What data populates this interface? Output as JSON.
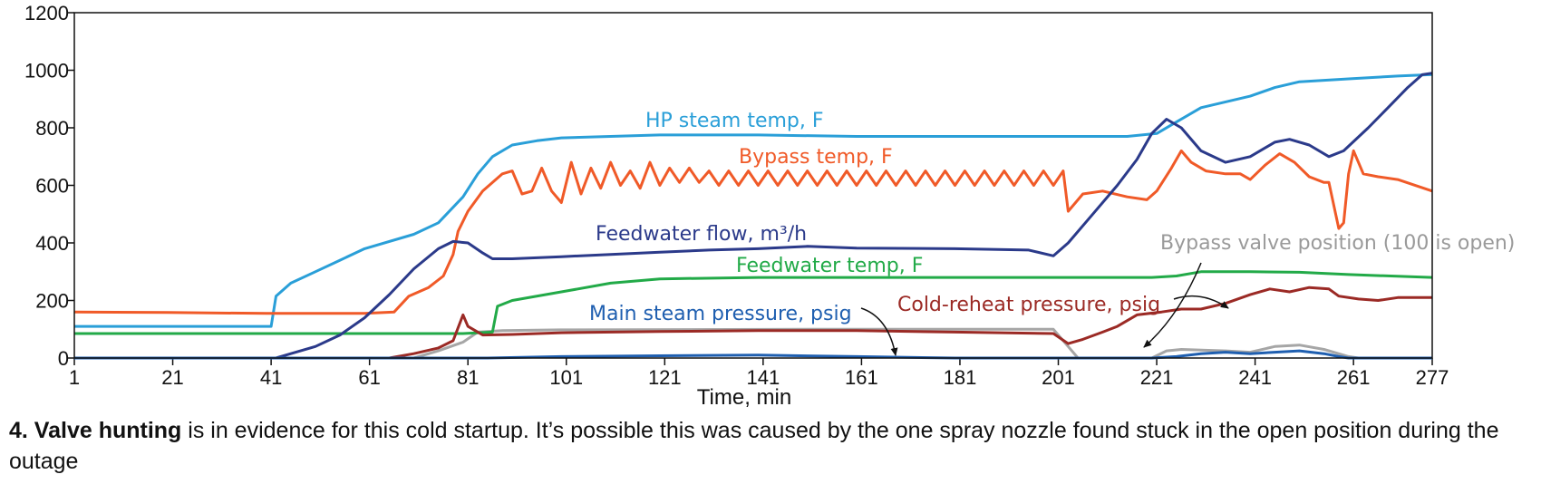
{
  "chart_data": {
    "type": "line",
    "xlabel": "Time, min",
    "ylabel": "",
    "xlim": [
      1,
      277
    ],
    "ylim": [
      0,
      1200
    ],
    "x_ticks": [
      1,
      21,
      41,
      61,
      81,
      101,
      121,
      141,
      161,
      181,
      201,
      221,
      241,
      261,
      277
    ],
    "y_ticks": [
      0,
      200,
      400,
      600,
      800,
      1000,
      1200
    ],
    "grid": false,
    "legend": "none",
    "series": [
      {
        "name": "HP steam temp, F",
        "color": "#2a9fd8",
        "points": [
          [
            1,
            110
          ],
          [
            20,
            110
          ],
          [
            41,
            110
          ],
          [
            42,
            215
          ],
          [
            45,
            260
          ],
          [
            50,
            300
          ],
          [
            55,
            340
          ],
          [
            60,
            380
          ],
          [
            70,
            430
          ],
          [
            75,
            470
          ],
          [
            80,
            560
          ],
          [
            83,
            640
          ],
          [
            86,
            700
          ],
          [
            90,
            740
          ],
          [
            95,
            755
          ],
          [
            100,
            765
          ],
          [
            110,
            770
          ],
          [
            120,
            775
          ],
          [
            140,
            775
          ],
          [
            160,
            770
          ],
          [
            180,
            770
          ],
          [
            200,
            770
          ],
          [
            215,
            770
          ],
          [
            221,
            780
          ],
          [
            225,
            820
          ],
          [
            230,
            870
          ],
          [
            240,
            910
          ],
          [
            245,
            940
          ],
          [
            250,
            960
          ],
          [
            260,
            970
          ],
          [
            270,
            980
          ],
          [
            277,
            985
          ]
        ]
      },
      {
        "name": "Bypass temp, F",
        "color": "#f05a28",
        "points": [
          [
            1,
            160
          ],
          [
            20,
            158
          ],
          [
            40,
            155
          ],
          [
            60,
            155
          ],
          [
            66,
            160
          ],
          [
            69,
            215
          ],
          [
            73,
            245
          ],
          [
            76,
            285
          ],
          [
            78,
            360
          ],
          [
            79,
            440
          ],
          [
            81,
            510
          ],
          [
            84,
            580
          ],
          [
            88,
            640
          ],
          [
            90,
            650
          ],
          [
            92,
            570
          ],
          [
            94,
            580
          ],
          [
            96,
            660
          ],
          [
            98,
            580
          ],
          [
            100,
            540
          ],
          [
            102,
            680
          ],
          [
            104,
            570
          ],
          [
            106,
            660
          ],
          [
            108,
            590
          ],
          [
            110,
            680
          ],
          [
            112,
            600
          ],
          [
            114,
            650
          ],
          [
            116,
            590
          ],
          [
            118,
            680
          ],
          [
            120,
            600
          ],
          [
            122,
            660
          ],
          [
            124,
            610
          ],
          [
            126,
            660
          ],
          [
            128,
            610
          ],
          [
            130,
            650
          ],
          [
            132,
            600
          ],
          [
            134,
            650
          ],
          [
            136,
            600
          ],
          [
            138,
            650
          ],
          [
            140,
            600
          ],
          [
            142,
            650
          ],
          [
            144,
            600
          ],
          [
            146,
            650
          ],
          [
            148,
            600
          ],
          [
            150,
            650
          ],
          [
            152,
            600
          ],
          [
            154,
            650
          ],
          [
            156,
            600
          ],
          [
            158,
            650
          ],
          [
            160,
            600
          ],
          [
            162,
            650
          ],
          [
            164,
            600
          ],
          [
            166,
            650
          ],
          [
            168,
            600
          ],
          [
            170,
            650
          ],
          [
            172,
            600
          ],
          [
            174,
            650
          ],
          [
            176,
            600
          ],
          [
            178,
            650
          ],
          [
            180,
            600
          ],
          [
            182,
            650
          ],
          [
            184,
            600
          ],
          [
            186,
            650
          ],
          [
            188,
            600
          ],
          [
            190,
            650
          ],
          [
            192,
            600
          ],
          [
            194,
            650
          ],
          [
            196,
            600
          ],
          [
            198,
            650
          ],
          [
            200,
            600
          ],
          [
            202,
            650
          ],
          [
            203,
            510
          ],
          [
            206,
            570
          ],
          [
            210,
            580
          ],
          [
            215,
            560
          ],
          [
            219,
            550
          ],
          [
            221,
            580
          ],
          [
            224,
            660
          ],
          [
            226,
            720
          ],
          [
            228,
            680
          ],
          [
            231,
            650
          ],
          [
            235,
            640
          ],
          [
            238,
            640
          ],
          [
            240,
            620
          ],
          [
            243,
            670
          ],
          [
            246,
            710
          ],
          [
            249,
            680
          ],
          [
            252,
            630
          ],
          [
            255,
            610
          ],
          [
            256,
            610
          ],
          [
            258,
            450
          ],
          [
            259,
            470
          ],
          [
            260,
            640
          ],
          [
            261,
            720
          ],
          [
            263,
            640
          ],
          [
            266,
            630
          ],
          [
            270,
            620
          ],
          [
            277,
            580
          ]
        ]
      },
      {
        "name": "Feedwater flow, m³/h",
        "color": "#2b3a8a",
        "points": [
          [
            1,
            0
          ],
          [
            42,
            0
          ],
          [
            45,
            15
          ],
          [
            50,
            40
          ],
          [
            55,
            80
          ],
          [
            60,
            140
          ],
          [
            65,
            220
          ],
          [
            70,
            310
          ],
          [
            75,
            380
          ],
          [
            78,
            405
          ],
          [
            81,
            400
          ],
          [
            84,
            365
          ],
          [
            86,
            345
          ],
          [
            90,
            345
          ],
          [
            100,
            352
          ],
          [
            110,
            360
          ],
          [
            120,
            368
          ],
          [
            130,
            375
          ],
          [
            140,
            380
          ],
          [
            150,
            388
          ],
          [
            160,
            382
          ],
          [
            180,
            380
          ],
          [
            195,
            375
          ],
          [
            200,
            355
          ],
          [
            203,
            400
          ],
          [
            208,
            500
          ],
          [
            213,
            600
          ],
          [
            217,
            690
          ],
          [
            220,
            780
          ],
          [
            223,
            830
          ],
          [
            226,
            800
          ],
          [
            230,
            720
          ],
          [
            235,
            680
          ],
          [
            240,
            700
          ],
          [
            245,
            750
          ],
          [
            248,
            760
          ],
          [
            252,
            740
          ],
          [
            256,
            700
          ],
          [
            259,
            720
          ],
          [
            264,
            800
          ],
          [
            268,
            870
          ],
          [
            272,
            940
          ],
          [
            275,
            985
          ],
          [
            277,
            990
          ]
        ]
      },
      {
        "name": "Feedwater temp, F",
        "color": "#22aa48",
        "points": [
          [
            1,
            85
          ],
          [
            40,
            85
          ],
          [
            60,
            85
          ],
          [
            80,
            85
          ],
          [
            86,
            90
          ],
          [
            87,
            180
          ],
          [
            90,
            200
          ],
          [
            100,
            230
          ],
          [
            110,
            260
          ],
          [
            120,
            275
          ],
          [
            140,
            280
          ],
          [
            160,
            280
          ],
          [
            180,
            280
          ],
          [
            200,
            280
          ],
          [
            220,
            280
          ],
          [
            225,
            285
          ],
          [
            230,
            300
          ],
          [
            240,
            300
          ],
          [
            250,
            298
          ],
          [
            260,
            290
          ],
          [
            277,
            280
          ]
        ]
      },
      {
        "name": "Cold-reheat pressure, psig",
        "color": "#9b2a25",
        "points": [
          [
            1,
            0
          ],
          [
            65,
            0
          ],
          [
            70,
            15
          ],
          [
            75,
            35
          ],
          [
            78,
            60
          ],
          [
            80,
            150
          ],
          [
            81,
            110
          ],
          [
            84,
            80
          ],
          [
            90,
            82
          ],
          [
            100,
            88
          ],
          [
            120,
            92
          ],
          [
            140,
            95
          ],
          [
            160,
            95
          ],
          [
            180,
            90
          ],
          [
            200,
            85
          ],
          [
            203,
            50
          ],
          [
            206,
            65
          ],
          [
            210,
            90
          ],
          [
            213,
            110
          ],
          [
            217,
            150
          ],
          [
            222,
            160
          ],
          [
            226,
            170
          ],
          [
            230,
            170
          ],
          [
            235,
            190
          ],
          [
            240,
            220
          ],
          [
            244,
            240
          ],
          [
            248,
            230
          ],
          [
            252,
            245
          ],
          [
            256,
            240
          ],
          [
            258,
            215
          ],
          [
            262,
            205
          ],
          [
            266,
            200
          ],
          [
            270,
            210
          ],
          [
            277,
            210
          ]
        ]
      },
      {
        "name": "Main steam pressure, psig",
        "color": "#1f5fb0",
        "points": [
          [
            1,
            0
          ],
          [
            85,
            0
          ],
          [
            100,
            5
          ],
          [
            120,
            8
          ],
          [
            140,
            10
          ],
          [
            160,
            5
          ],
          [
            180,
            0
          ],
          [
            200,
            0
          ],
          [
            220,
            0
          ],
          [
            225,
            5
          ],
          [
            230,
            15
          ],
          [
            235,
            20
          ],
          [
            240,
            15
          ],
          [
            245,
            20
          ],
          [
            250,
            25
          ],
          [
            255,
            15
          ],
          [
            258,
            5
          ],
          [
            260,
            0
          ],
          [
            277,
            0
          ]
        ]
      },
      {
        "name": "Bypass valve position (100 is open)",
        "color": "#a6a6a6",
        "points": [
          [
            1,
            0
          ],
          [
            70,
            0
          ],
          [
            75,
            25
          ],
          [
            80,
            55
          ],
          [
            83,
            90
          ],
          [
            88,
            95
          ],
          [
            100,
            98
          ],
          [
            150,
            100
          ],
          [
            200,
            100
          ],
          [
            203,
            40
          ],
          [
            205,
            0
          ],
          [
            220,
            0
          ],
          [
            223,
            25
          ],
          [
            226,
            30
          ],
          [
            235,
            25
          ],
          [
            240,
            20
          ],
          [
            245,
            40
          ],
          [
            250,
            45
          ],
          [
            255,
            30
          ],
          [
            260,
            5
          ],
          [
            262,
            0
          ],
          [
            277,
            0
          ]
        ]
      }
    ],
    "annotations": [
      {
        "text": "HP steam temp, F",
        "series": 0
      },
      {
        "text": "Bypass temp, F",
        "series": 1
      },
      {
        "text": "Feedwater flow, m³/h",
        "series": 2
      },
      {
        "text": "Feedwater temp, F",
        "series": 3
      },
      {
        "text": "Cold-reheat pressure, psig",
        "series": 4
      },
      {
        "text": "Main steam pressure, psig",
        "series": 5
      },
      {
        "text": "Bypass valve position (100 is open)",
        "series": 6
      }
    ]
  },
  "caption": {
    "bold": "4. Valve hunting",
    "text": " is in evidence for this cold startup. It’s possible this was caused by the one spray nozzle found stuck in the open position during the outage"
  }
}
